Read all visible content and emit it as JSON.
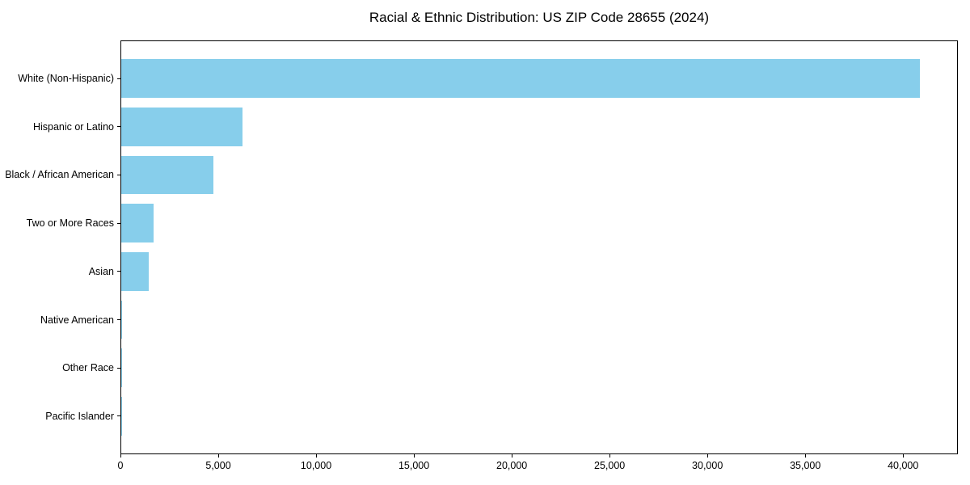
{
  "chart_data": {
    "type": "bar",
    "orientation": "horizontal",
    "title": "Racial & Ethnic Distribution: US ZIP Code 28655 (2024)",
    "categories": [
      "White (Non-Hispanic)",
      "Hispanic or Latino",
      "Black / African American",
      "Two or More Races",
      "Asian",
      "Native American",
      "Other Race",
      "Pacific Islander"
    ],
    "values": [
      40800,
      6200,
      4700,
      1650,
      1400,
      60,
      40,
      10
    ],
    "xlabel": "",
    "ylabel": "",
    "xlim": [
      0,
      42800
    ],
    "xticks": [
      0,
      5000,
      10000,
      15000,
      20000,
      25000,
      30000,
      35000,
      40000
    ],
    "xtick_labels": [
      "0",
      "5,000",
      "10,000",
      "15,000",
      "20,000",
      "25,000",
      "30,000",
      "35,000",
      "40,000"
    ],
    "bar_color": "#87CEEB",
    "spine_color": "#000000",
    "text_color": "#000000",
    "grid": false,
    "legend": null,
    "largest_bar_first": true
  }
}
